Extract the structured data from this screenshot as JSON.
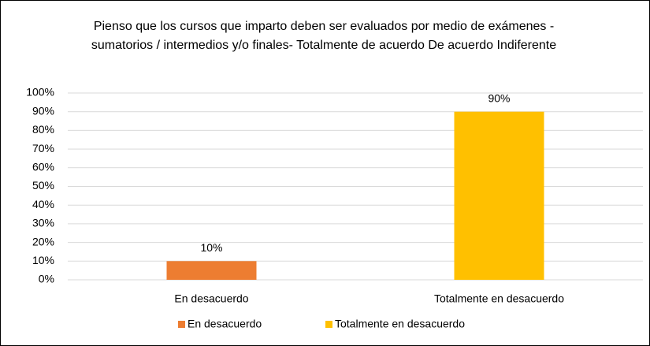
{
  "chart_data": {
    "type": "bar",
    "title": "Pienso que los cursos que imparto deben ser evaluados por medio de exámenes -sumatorios / intermedios y/o finales- Totalmente de acuerdo De acuerdo Indiferente",
    "categories": [
      "En desacuerdo",
      "Totalmente en desacuerdo"
    ],
    "values": [
      10,
      90
    ],
    "value_labels": [
      "10%",
      "90%"
    ],
    "colors": [
      "#ed7d31",
      "#ffc000"
    ],
    "ylim": [
      0,
      100
    ],
    "yticks": [
      {
        "value": 0,
        "label": "0%"
      },
      {
        "value": 10,
        "label": "10%"
      },
      {
        "value": 20,
        "label": "20%"
      },
      {
        "value": 30,
        "label": "30%"
      },
      {
        "value": 40,
        "label": "40%"
      },
      {
        "value": 50,
        "label": "50%"
      },
      {
        "value": 60,
        "label": "60%"
      },
      {
        "value": 70,
        "label": "70%"
      },
      {
        "value": 80,
        "label": "80%"
      },
      {
        "value": 90,
        "label": "90%"
      },
      {
        "value": 100,
        "label": "100%"
      }
    ],
    "grid": true,
    "legend": "bottom"
  }
}
